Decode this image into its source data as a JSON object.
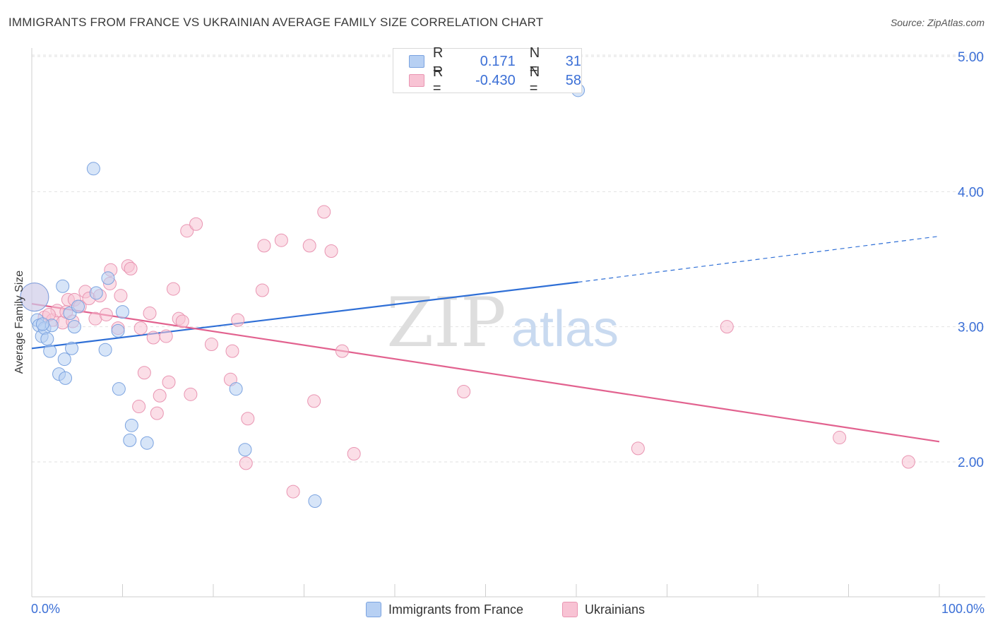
{
  "header": {
    "title": "IMMIGRANTS FROM FRANCE VS UKRAINIAN AVERAGE FAMILY SIZE CORRELATION CHART",
    "source": "Source: ZipAtlas.com"
  },
  "legend": {
    "rows": [
      {
        "r_label": "R =",
        "r_value": "0.171",
        "n_label": "N =",
        "n_value": "31"
      },
      {
        "r_label": "R =",
        "r_value": "-0.430",
        "n_label": "N =",
        "n_value": "58"
      }
    ]
  },
  "watermark": {
    "zip": "ZIP",
    "atlas": "atlas"
  },
  "colors": {
    "blue_fill": "#b7d0f3",
    "blue_stroke": "#7ba3e0",
    "blue_line": "#2f6fd6",
    "pink_fill": "#f8c3d4",
    "pink_stroke": "#e995b2",
    "pink_line": "#e2628f",
    "tick_label": "#3b6fd6"
  },
  "chart_data": {
    "type": "scatter",
    "title": "IMMIGRANTS FROM FRANCE VS UKRAINIAN AVERAGE FAMILY SIZE CORRELATION CHART",
    "xlabel": "",
    "ylabel": "Average Family Size",
    "x_tick_labels": [
      "0.0%",
      "100.0%"
    ],
    "y_ticks": [
      2.0,
      3.0,
      4.0,
      5.0
    ],
    "y_tick_labels": [
      "2.00",
      "3.00",
      "4.00",
      "5.00"
    ],
    "xlim": [
      0,
      100
    ],
    "ylim": [
      1.0,
      5.1
    ],
    "grid": "horizontal dashed",
    "legend_position": "top-center",
    "series": [
      {
        "name": "Immigrants from France",
        "color": "#b7d0f3",
        "points": [
          [
            0.3,
            3.22
          ],
          [
            0.6,
            3.05
          ],
          [
            0.8,
            3.01
          ],
          [
            1.1,
            2.93
          ],
          [
            1.4,
            2.99
          ],
          [
            1.7,
            2.91
          ],
          [
            2.0,
            2.82
          ],
          [
            2.2,
            3.01
          ],
          [
            3.0,
            2.65
          ],
          [
            3.4,
            3.3
          ],
          [
            3.6,
            2.76
          ],
          [
            3.7,
            2.62
          ],
          [
            4.2,
            3.1
          ],
          [
            4.4,
            2.84
          ],
          [
            4.7,
            3.0
          ],
          [
            5.1,
            3.15
          ],
          [
            6.8,
            4.17
          ],
          [
            7.1,
            3.25
          ],
          [
            8.1,
            2.83
          ],
          [
            8.4,
            3.36
          ],
          [
            9.5,
            2.97
          ],
          [
            9.6,
            2.54
          ],
          [
            10.0,
            3.11
          ],
          [
            11.0,
            2.27
          ],
          [
            10.8,
            2.16
          ],
          [
            12.7,
            2.14
          ],
          [
            22.5,
            2.54
          ],
          [
            23.5,
            2.09
          ],
          [
            31.2,
            1.71
          ],
          [
            60.2,
            4.75
          ],
          [
            1.2,
            3.02
          ]
        ],
        "trend": {
          "x": [
            0,
            60.2
          ],
          "y": [
            2.84,
            3.33
          ],
          "extension": {
            "x": [
              60.2,
              100
            ],
            "y": [
              3.33,
              3.67
            ]
          }
        }
      },
      {
        "name": "Ukrainians",
        "color": "#f8c3d4",
        "points": [
          [
            0.3,
            3.22
          ],
          [
            1.4,
            3.07
          ],
          [
            2.3,
            3.05
          ],
          [
            2.8,
            3.12
          ],
          [
            3.4,
            3.03
          ],
          [
            3.8,
            3.11
          ],
          [
            4.0,
            3.2
          ],
          [
            4.7,
            3.2
          ],
          [
            5.3,
            3.15
          ],
          [
            5.9,
            3.26
          ],
          [
            6.3,
            3.21
          ],
          [
            7.0,
            3.06
          ],
          [
            7.5,
            3.23
          ],
          [
            8.2,
            3.09
          ],
          [
            8.6,
            3.32
          ],
          [
            8.7,
            3.42
          ],
          [
            9.5,
            2.99
          ],
          [
            9.8,
            3.23
          ],
          [
            10.6,
            3.45
          ],
          [
            10.9,
            3.43
          ],
          [
            11.8,
            2.41
          ],
          [
            12.0,
            2.99
          ],
          [
            12.4,
            2.66
          ],
          [
            13.0,
            3.1
          ],
          [
            13.4,
            2.92
          ],
          [
            13.8,
            2.36
          ],
          [
            14.1,
            2.49
          ],
          [
            14.8,
            2.93
          ],
          [
            15.1,
            2.59
          ],
          [
            15.6,
            3.28
          ],
          [
            16.2,
            3.06
          ],
          [
            16.6,
            3.04
          ],
          [
            17.1,
            3.71
          ],
          [
            17.5,
            2.5
          ],
          [
            18.1,
            3.76
          ],
          [
            19.8,
            2.87
          ],
          [
            21.9,
            2.61
          ],
          [
            22.1,
            2.82
          ],
          [
            22.7,
            3.05
          ],
          [
            23.6,
            1.99
          ],
          [
            23.8,
            2.32
          ],
          [
            25.6,
            3.6
          ],
          [
            25.4,
            3.27
          ],
          [
            27.5,
            3.64
          ],
          [
            28.8,
            1.78
          ],
          [
            30.6,
            3.6
          ],
          [
            31.1,
            2.45
          ],
          [
            32.2,
            3.85
          ],
          [
            33.0,
            3.56
          ],
          [
            34.2,
            2.82
          ],
          [
            35.5,
            2.06
          ],
          [
            47.6,
            2.52
          ],
          [
            66.8,
            2.1
          ],
          [
            76.6,
            3.0
          ],
          [
            89.0,
            2.18
          ],
          [
            96.6,
            2.0
          ],
          [
            4.5,
            3.04
          ],
          [
            1.9,
            3.09
          ]
        ],
        "trend": {
          "x": [
            0,
            100
          ],
          "y": [
            3.17,
            2.15
          ]
        }
      }
    ]
  },
  "bottom_legend": {
    "items": [
      {
        "label": "Immigrants from France"
      },
      {
        "label": "Ukrainians"
      }
    ]
  }
}
